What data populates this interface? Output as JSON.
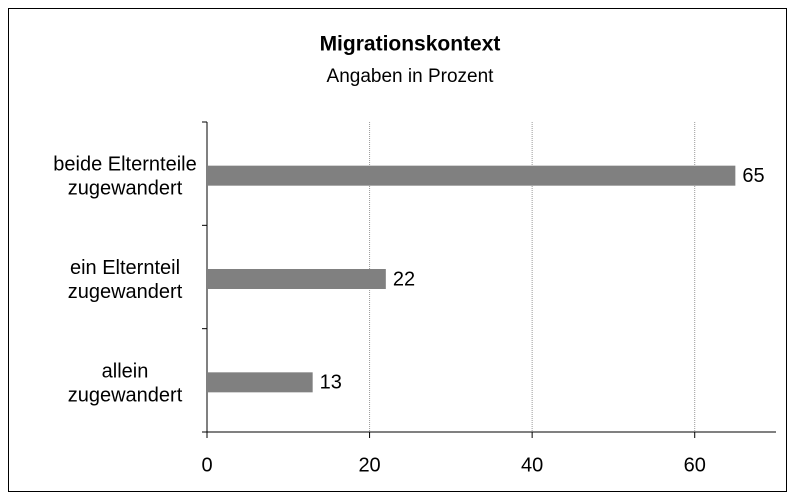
{
  "chart_data": {
    "type": "bar",
    "orientation": "horizontal",
    "title": "Migrationskontext",
    "subtitle": "Angaben in Prozent",
    "categories": [
      "beide Elternteile\nzugewandert",
      "ein Elternteil\nzugewandert",
      "allein\nzugewandert"
    ],
    "values": [
      65,
      22,
      13
    ],
    "color": "#808080",
    "xlim": [
      0,
      70
    ],
    "xticks": [
      0,
      20,
      40,
      60
    ],
    "grid": true
  }
}
